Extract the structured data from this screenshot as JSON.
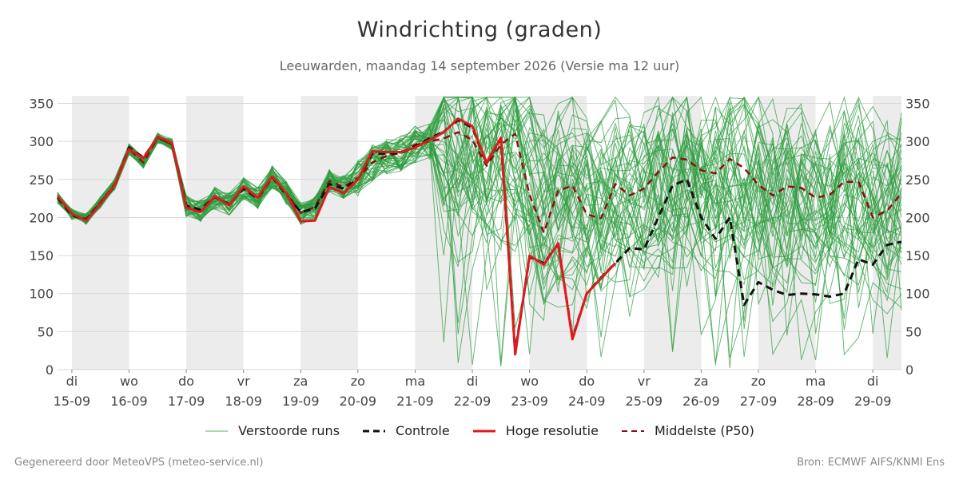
{
  "header": {
    "title": "Windrichting (graden)",
    "subtitle": "Leeuwarden, maandag 14 september 2026 (Versie ma 12 uur)"
  },
  "footer": {
    "left": "Gegenereerd door MeteoVPS (meteo-service.nl)",
    "right": "Bron: ECMWF AIFS/KNMI Ens"
  },
  "legend": [
    {
      "label": "Verstoorde runs",
      "color": "#2e9c3f",
      "style": "thin"
    },
    {
      "label": "Controle",
      "color": "#111111",
      "style": "dashed"
    },
    {
      "label": "Hoge resolutie",
      "color": "#e0191c",
      "style": "solid"
    },
    {
      "label": "Middelste (P50)",
      "color": "#8b1010",
      "style": "dashed"
    }
  ],
  "chart_data": {
    "type": "line",
    "title": "Windrichting (graden)",
    "xlabel": "",
    "ylabel": "",
    "x_unit": "days since 15-09 00:00 (6-hourly steps)",
    "x_range": [
      -0.25,
      14.5
    ],
    "ylim": [
      0,
      360
    ],
    "yticks": [
      0,
      50,
      100,
      150,
      200,
      250,
      300,
      350
    ],
    "grid": true,
    "legend_position": "bottom",
    "weekend_shading": [
      [
        0,
        1
      ],
      [
        2,
        3
      ],
      [
        4,
        5
      ],
      [
        6,
        7
      ],
      [
        8,
        9
      ],
      [
        10,
        11
      ],
      [
        12,
        13
      ],
      [
        14,
        14.5
      ]
    ],
    "x_tick_labels": [
      {
        "day": "di",
        "date": "15-09"
      },
      {
        "day": "wo",
        "date": "16-09"
      },
      {
        "day": "do",
        "date": "17-09"
      },
      {
        "day": "vr",
        "date": "18-09"
      },
      {
        "day": "za",
        "date": "19-09"
      },
      {
        "day": "zo",
        "date": "20-09"
      },
      {
        "day": "ma",
        "date": "21-09"
      },
      {
        "day": "di",
        "date": "22-09"
      },
      {
        "day": "wo",
        "date": "23-09"
      },
      {
        "day": "do",
        "date": "24-09"
      },
      {
        "day": "vr",
        "date": "25-09"
      },
      {
        "day": "za",
        "date": "26-09"
      },
      {
        "day": "zo",
        "date": "27-09"
      },
      {
        "day": "ma",
        "date": "28-09"
      },
      {
        "day": "di",
        "date": "29-09"
      }
    ],
    "x": [
      -0.25,
      0,
      0.25,
      0.5,
      0.75,
      1,
      1.25,
      1.5,
      1.75,
      2,
      2.25,
      2.5,
      2.75,
      3,
      3.25,
      3.5,
      3.75,
      4,
      4.25,
      4.5,
      4.75,
      5,
      5.25,
      5.5,
      5.75,
      6,
      6.25,
      6.5,
      6.75,
      7,
      7.25,
      7.5,
      7.75,
      8,
      8.25,
      8.5,
      8.75,
      9,
      9.25,
      9.5,
      9.75,
      10,
      10.25,
      10.5,
      10.75,
      11,
      11.25,
      11.5,
      11.75,
      12,
      12.25,
      12.5,
      12.75,
      13,
      13.25,
      13.5,
      13.75,
      14,
      14.25,
      14.5
    ],
    "series": [
      {
        "name": "Hoge resolutie",
        "color": "#e0191c",
        "values": [
          228,
          205,
          196,
          218,
          243,
          290,
          278,
          306,
          298,
          213,
          207,
          228,
          216,
          241,
          226,
          254,
          232,
          195,
          196,
          240,
          232,
          250,
          287,
          286,
          286,
          292,
          302,
          312,
          330,
          320,
          272,
          305,
          20,
          150,
          138,
          166,
          40,
          100,
          120,
          140,
          null,
          null,
          null,
          null,
          null,
          null,
          null,
          null,
          null,
          null,
          null,
          null,
          null,
          null,
          null,
          null,
          null,
          null,
          null,
          null
        ]
      },
      {
        "name": "Controle",
        "color": "#111111",
        "values": [
          226,
          203,
          197,
          219,
          242,
          292,
          279,
          305,
          297,
          216,
          210,
          228,
          217,
          238,
          225,
          253,
          230,
          207,
          212,
          244,
          238,
          250,
          284,
          284,
          285,
          293,
          304,
          313,
          328,
          318,
          271,
          304,
          23,
          148,
          140,
          165,
          42,
          100,
          121,
          140,
          160,
          158,
          200,
          242,
          250,
          200,
          172,
          200,
          85,
          115,
          105,
          98,
          100,
          99,
          96,
          100,
          145,
          138,
          164,
          168
        ]
      },
      {
        "name": "Middelste (P50)",
        "color": "#8b1010",
        "values": [
          226,
          204,
          198,
          220,
          244,
          290,
          272,
          305,
          296,
          215,
          209,
          226,
          218,
          238,
          226,
          253,
          232,
          206,
          214,
          248,
          240,
          252,
          272,
          281,
          285,
          296,
          300,
          304,
          312,
          302,
          268,
          296,
          310,
          230,
          180,
          235,
          242,
          204,
          199,
          244,
          229,
          238,
          260,
          279,
          276,
          262,
          258,
          277,
          265,
          243,
          229,
          241,
          239,
          226,
          230,
          247,
          247,
          200,
          209,
          232
        ]
      }
    ],
    "ensemble_members": 50
  }
}
